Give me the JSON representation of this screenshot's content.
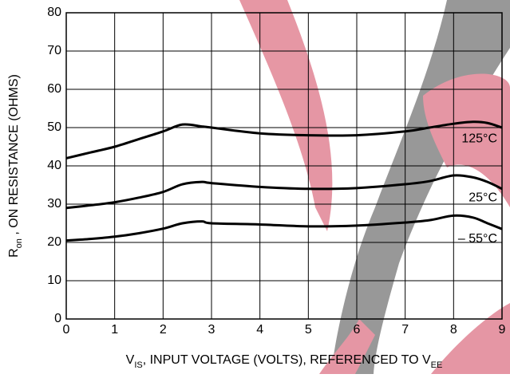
{
  "chart_data": {
    "type": "line",
    "xlabel_parts": [
      {
        "text": "V"
      },
      {
        "text": "IS",
        "sub": true
      },
      {
        "text": ", INPUT VOLTAGE (VOLTS), REFERENCED TO V"
      },
      {
        "text": "EE",
        "sub": true
      }
    ],
    "ylabel_parts": [
      {
        "text": "R"
      },
      {
        "text": "on",
        "sub": true
      },
      {
        "text": " , ON RESISTANCE (OHMS)"
      }
    ],
    "x": [
      0,
      0.5,
      1,
      1.5,
      2,
      2.4,
      2.8,
      3,
      4,
      5,
      6,
      7,
      7.5,
      8,
      8.4,
      8.7,
      9
    ],
    "series": [
      {
        "name": "125°C",
        "color": "#000000",
        "values": [
          42,
          43.5,
          45,
          47,
          49,
          50.8,
          50.3,
          50,
          48.5,
          48,
          48,
          49,
          50,
          51,
          51.5,
          51.2,
          50
        ]
      },
      {
        "name": "25°C",
        "color": "#000000",
        "values": [
          29,
          29.7,
          30.5,
          31.7,
          33.2,
          35.2,
          35.8,
          35.5,
          34.5,
          34,
          34.2,
          35.2,
          36,
          37.5,
          37,
          35.8,
          34
        ]
      },
      {
        "name": "– 55°C",
        "color": "#000000",
        "values": [
          20.5,
          20.9,
          21.5,
          22.4,
          23.6,
          25,
          25.5,
          25,
          24.7,
          24.2,
          24.4,
          25.2,
          25.8,
          27,
          26.5,
          25,
          23.5
        ]
      }
    ],
    "xlim": [
      0,
      9
    ],
    "ylim": [
      0,
      80
    ],
    "xticks": [
      0,
      1,
      2,
      3,
      4,
      5,
      6,
      7,
      8,
      9
    ],
    "yticks": [
      0,
      10,
      20,
      30,
      40,
      50,
      60,
      70,
      80
    ],
    "grid": true
  }
}
